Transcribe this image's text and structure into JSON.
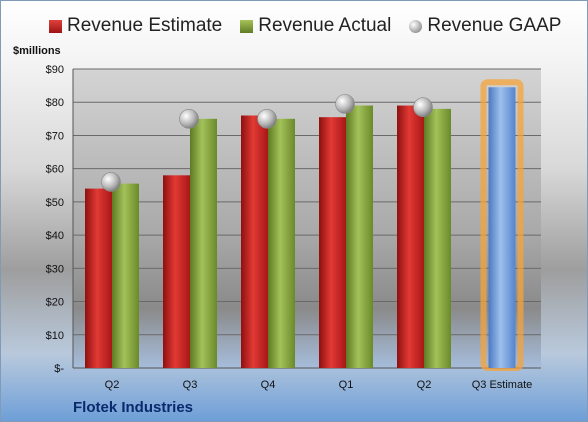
{
  "legend": {
    "estimate": "Revenue Estimate",
    "actual": "Revenue Actual",
    "gaap": "Revenue GAAP"
  },
  "unit_label": "$millions",
  "company": "Flotek Industries",
  "chart_data": {
    "type": "bar",
    "categories": [
      "Q2",
      "Q3",
      "Q4",
      "Q1",
      "Q2",
      "Q3 Estimate"
    ],
    "series": [
      {
        "name": "Revenue Estimate",
        "values": [
          54,
          58,
          76,
          75.5,
          79,
          null
        ]
      },
      {
        "name": "Revenue Actual",
        "values": [
          55.5,
          75,
          75,
          79,
          78,
          null
        ]
      },
      {
        "name": "Revenue GAAP",
        "values": [
          56,
          75,
          75,
          79.5,
          78.5,
          null
        ]
      }
    ],
    "forecast": {
      "category": "Q3 Estimate",
      "value": 84.5
    },
    "yticks": [
      "$-",
      "$10",
      "$20",
      "$30",
      "$40",
      "$50",
      "$60",
      "$70",
      "$80",
      "$90"
    ],
    "ylim": [
      0,
      90
    ],
    "grid": true,
    "legend_position": "top",
    "colors": {
      "estimate": "#c0201d",
      "actual": "#7d9b35",
      "gaap": "#b0b0b0",
      "forecast": "#6f9bd6",
      "forecast_glow": "#f5a33a"
    }
  }
}
